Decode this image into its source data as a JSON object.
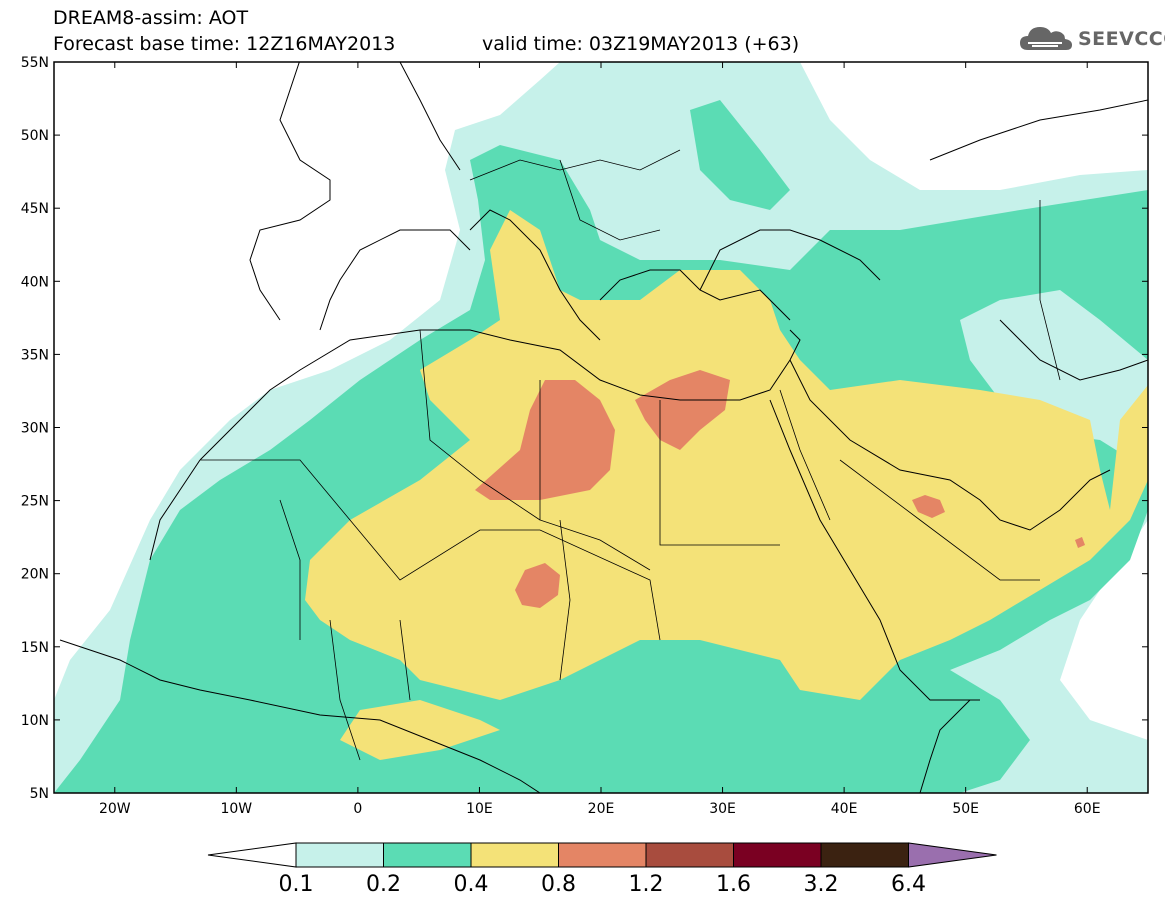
{
  "title": {
    "line1": "DREAM8-assim: AOT",
    "line2": "Forecast base time: 12Z16MAY2013",
    "line3": "valid time: 03Z19MAY2013 (+63)"
  },
  "logo": {
    "text": "SEEVCCC",
    "icon": "cloud-icon"
  },
  "map": {
    "lon_range": [
      -25,
      65
    ],
    "lat_range": [
      5,
      55
    ],
    "lat_labels": [
      "55N",
      "50N",
      "45N",
      "40N",
      "35N",
      "30N",
      "25N",
      "20N",
      "15N",
      "10N",
      "5N"
    ],
    "lon_labels": [
      "20W",
      "10W",
      "0",
      "10E",
      "20E",
      "30E",
      "40E",
      "50E",
      "60E"
    ]
  },
  "colorbar": {
    "labels": [
      "0.1",
      "0.2",
      "0.4",
      "0.8",
      "1.2",
      "1.6",
      "3.2",
      "6.4"
    ],
    "colors": [
      "#ffffff",
      "#c6f1ea",
      "#5bdcb4",
      "#f4e278",
      "#e48565",
      "#a84c3e",
      "#7a0022",
      "#3b2211",
      "#9a6fae"
    ]
  }
}
